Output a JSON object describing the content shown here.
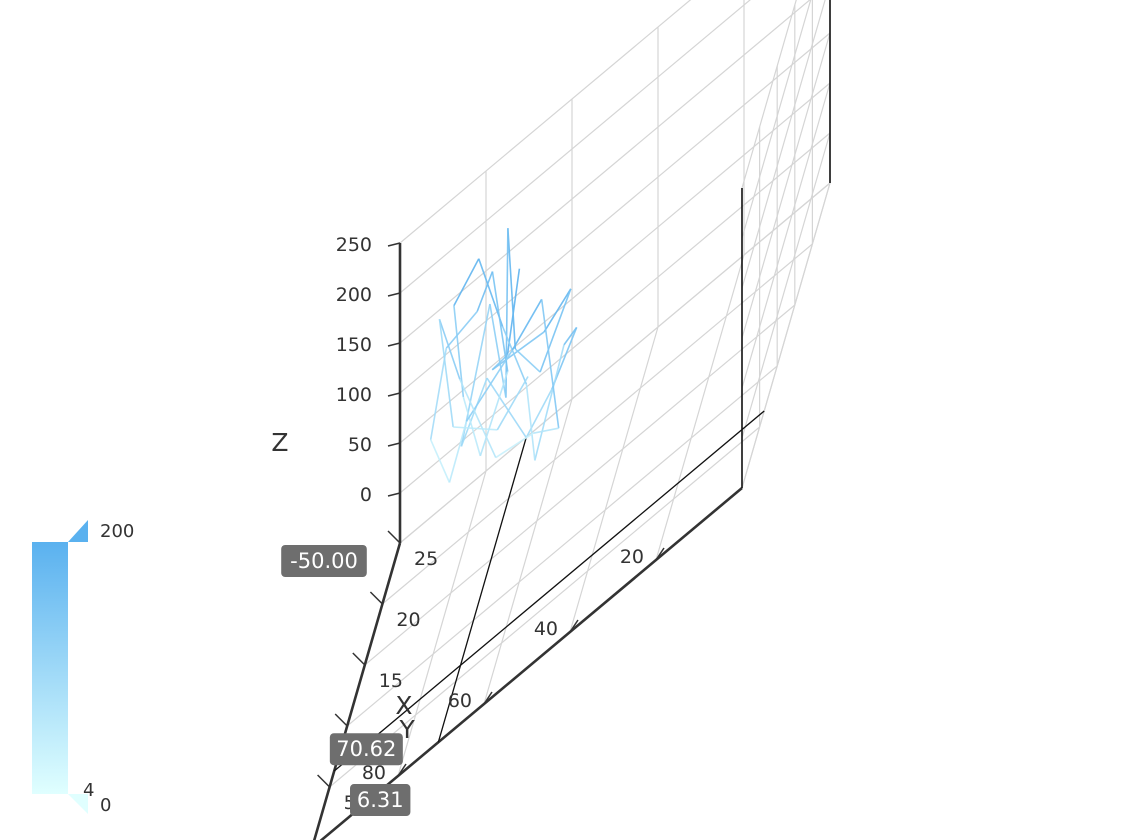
{
  "chart_data": {
    "type": "line3D",
    "title": "",
    "axes": {
      "x": {
        "name": "X",
        "min": 0,
        "max": 100,
        "ticks": [
          "20",
          "40",
          "60",
          "80"
        ],
        "tick_values": [
          20,
          40,
          60,
          80
        ]
      },
      "y": {
        "name": "Y",
        "min": 0,
        "max": 25,
        "ticks": [
          "5",
          "10",
          "15",
          "20",
          "25"
        ],
        "tick_values": [
          5,
          10,
          15,
          20,
          25
        ]
      },
      "z": {
        "name": "Z",
        "min": -50,
        "max": 250,
        "ticks": [
          "0",
          "50",
          "100",
          "150",
          "200",
          "250"
        ],
        "tick_values": [
          0,
          50,
          100,
          150,
          200,
          250
        ]
      }
    },
    "axis_pointer": {
      "x": "70.62",
      "y": "6.31",
      "z": "-50.00",
      "x_value": 70.62,
      "y_value": 6.31,
      "z_value": -50
    },
    "visual_map": {
      "min": 0,
      "max": 200,
      "min_label": "0",
      "max_label": "200",
      "extra_label": "4",
      "color_low": "#e0ffff",
      "color_high": "#5ab1ef"
    },
    "series": [
      {
        "points": [
          [
            62,
            12.5,
            240
          ],
          [
            66,
            14.0,
            150
          ],
          [
            72,
            17.0,
            120
          ],
          [
            55,
            11.0,
            170
          ],
          [
            48,
            10.0,
            200
          ],
          [
            58,
            13.5,
            110
          ],
          [
            65,
            15.0,
            140
          ],
          [
            70,
            19.0,
            230
          ],
          [
            68,
            16.0,
            90
          ],
          [
            75,
            20.0,
            160
          ],
          [
            80,
            18.0,
            60
          ],
          [
            72,
            15.5,
            130
          ],
          [
            60,
            12.0,
            70
          ],
          [
            52,
            9.5,
            120
          ],
          [
            45,
            8.0,
            175
          ],
          [
            50,
            10.5,
            145
          ],
          [
            58,
            12.0,
            40
          ],
          [
            62,
            14.5,
            100
          ],
          [
            70,
            17.5,
            150
          ],
          [
            78,
            20.5,
            210
          ],
          [
            85,
            22.0,
            170
          ],
          [
            82,
            21.0,
            80
          ],
          [
            76,
            18.5,
            30
          ],
          [
            68,
            16.5,
            110
          ],
          [
            74,
            19.5,
            195
          ],
          [
            80,
            22.5,
            140
          ],
          [
            88,
            23.5,
            120
          ],
          [
            90,
            21.5,
            60
          ],
          [
            84,
            19.5,
            20
          ],
          [
            78,
            17.0,
            90
          ],
          [
            64,
            13.0,
            160
          ],
          [
            56,
            11.5,
            200
          ],
          [
            50,
            9.0,
            80
          ],
          [
            60,
            14.0,
            50
          ],
          [
            72,
            18.0,
            20
          ],
          [
            82,
            20.0,
            110
          ],
          [
            90,
            24.0,
            150
          ],
          [
            86,
            23.0,
            40
          ],
          [
            70,
            16.0,
            65
          ],
          [
            60,
            12.5,
            125
          ]
        ]
      }
    ]
  }
}
